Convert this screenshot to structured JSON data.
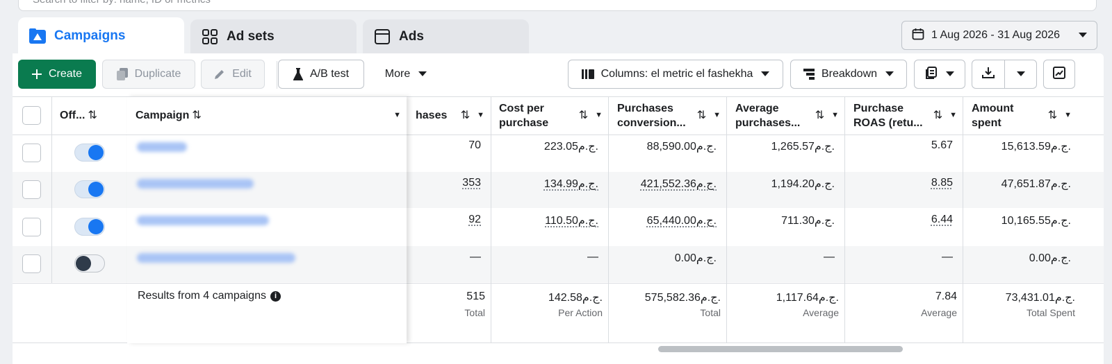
{
  "search": {
    "placeholder": "Search to filter by: name, ID or metrics"
  },
  "tabs": [
    {
      "label": "Campaigns",
      "active": true,
      "icon": "campaigns-folder-icon"
    },
    {
      "label": "Ad sets",
      "active": false,
      "icon": "grid-icon"
    },
    {
      "label": "Ads",
      "active": false,
      "icon": "window-icon"
    }
  ],
  "date_range": "1 Aug 2026 - 31 Aug 2026",
  "toolbar": {
    "create": "Create",
    "duplicate": "Duplicate",
    "edit": "Edit",
    "ab_test": "A/B test",
    "more": "More",
    "columns": "Columns: el metric el fashekha",
    "breakdown": "Breakdown"
  },
  "columns": {
    "offon": "Off...",
    "campaign": "Campaign",
    "purchases": "hases",
    "cost_per_purchase": "Cost per purchase",
    "purchases_conversion": "Purchases conversion...",
    "average_purchases": "Average purchases...",
    "purchase_roas": "Purchase ROAS (retu...",
    "amount_spent": "Amount spent"
  },
  "rows": [
    {
      "on": true,
      "purchases": "70",
      "cost": "223.05ج.م.",
      "conversion": "88,590.00ج.م.",
      "average": "1,265.57ج.م.",
      "roas": "5.67",
      "spent": "15,613.59ج.م."
    },
    {
      "on": true,
      "purchases": "353",
      "cost": "134.99ج.م.",
      "conversion": "421,552.36ج.م.",
      "average": "1,194.20ج.م.",
      "roas": "8.85",
      "spent": "47,651.87ج.م."
    },
    {
      "on": true,
      "purchases": "92",
      "cost": "110.50ج.م.",
      "conversion": "65,440.00ج.م.",
      "average": "711.30ج.م.",
      "roas": "6.44",
      "spent": "10,165.55ج.م."
    },
    {
      "on": false,
      "purchases": "—",
      "cost": "—",
      "conversion": "0.00ج.م.",
      "average": "—",
      "roas": "—",
      "spent": "0.00ج.م."
    }
  ],
  "totals": {
    "label": "Results from 4 campaigns",
    "purchases": "515",
    "purchases_sub": "Total",
    "cost": "142.58ج.م.",
    "cost_sub": "Per Action",
    "conversion": "575,582.36ج.م.",
    "conversion_sub": "Total",
    "average": "1,117.64ج.م.",
    "average_sub": "Average",
    "roas": "7.84",
    "roas_sub": "Average",
    "spent": "73,431.01ج.م.",
    "spent_sub": "Total Spent"
  }
}
